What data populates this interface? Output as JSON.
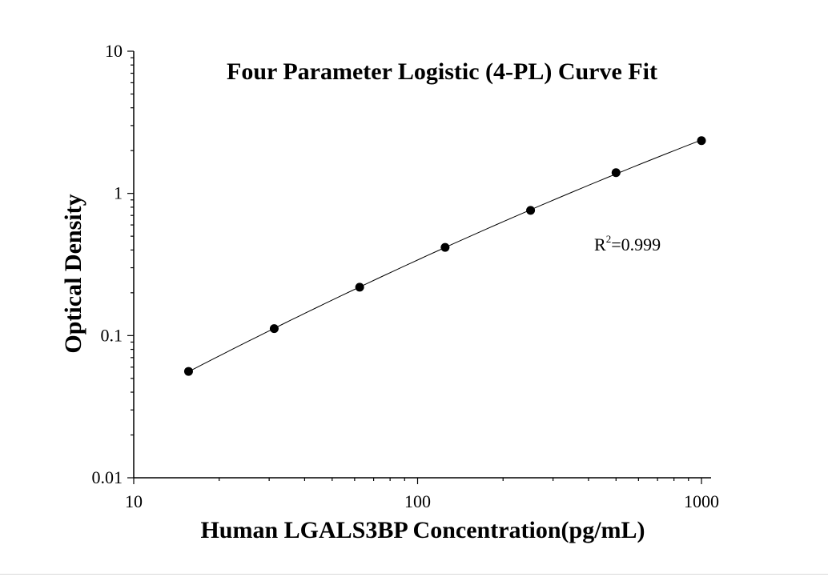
{
  "chart_data": {
    "type": "scatter",
    "title": "Four Parameter Logistic (4-PL) Curve Fit",
    "xlabel": "Human LGALS3BP Concentration(pg/mL)",
    "ylabel": "Optical Density",
    "xscale": "log",
    "yscale": "log",
    "xlim": [
      10,
      1000
    ],
    "ylim": [
      0.01,
      10
    ],
    "x_ticks": [
      10,
      100,
      1000
    ],
    "x_tick_labels": [
      "10",
      "100",
      "1000"
    ],
    "y_ticks": [
      0.01,
      0.1,
      1,
      10
    ],
    "y_tick_labels": [
      "0.01",
      "0.1",
      "1",
      "10"
    ],
    "grid": false,
    "series": [
      {
        "x": [
          15.6,
          31.25,
          62.5,
          125,
          250,
          500,
          1000
        ],
        "y": [
          0.056,
          0.112,
          0.219,
          0.417,
          0.76,
          1.4,
          2.35
        ]
      }
    ],
    "fit_curve": true,
    "annotation": {
      "r2_base": "R",
      "r2_sup": "2",
      "r2_value": "=0.999"
    }
  }
}
